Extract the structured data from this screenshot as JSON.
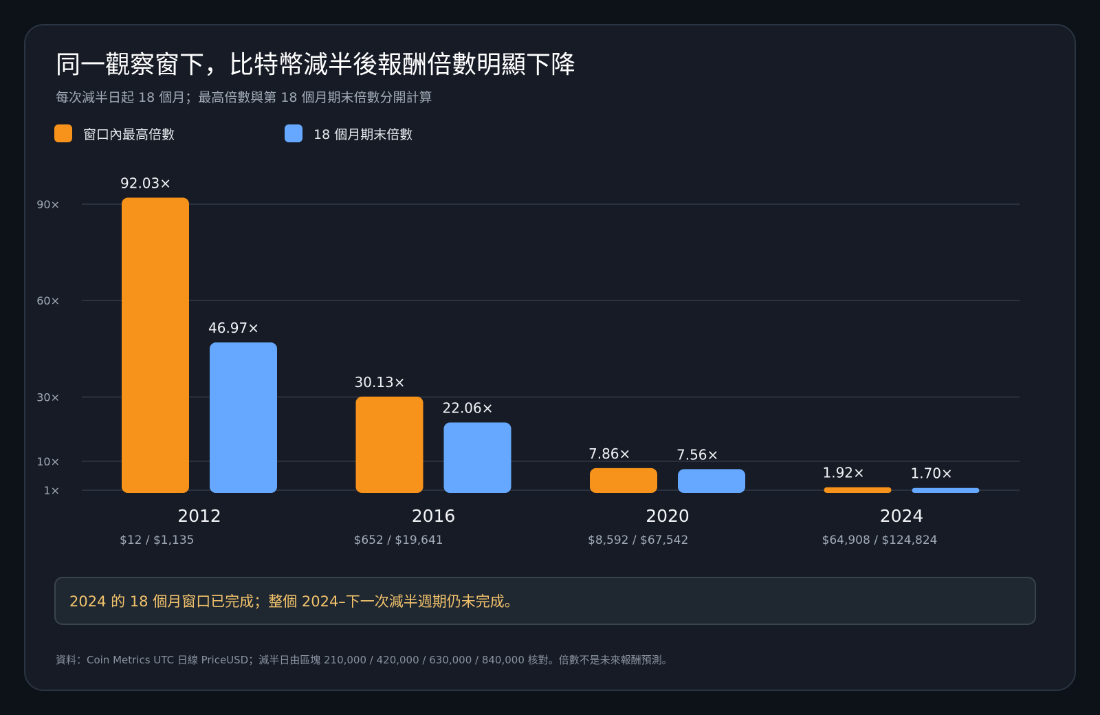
{
  "title": "同一觀察窗下，比特幣減半後報酬倍數明顯下降",
  "subtitle": "每次減半日起 18 個月；最高倍數與第 18 個月期末倍數分開計算",
  "legend": [
    {
      "label": "窗口內最高倍數",
      "color": "#f7931a"
    },
    {
      "label": "18 個月期末倍數",
      "color": "#66a8ff"
    }
  ],
  "chart_data": {
    "type": "bar",
    "categories": [
      "2012",
      "2016",
      "2020",
      "2024"
    ],
    "category_sublabels": [
      "$12  /  $1,135",
      "$652  /  $19,641",
      "$8,592  /  $67,542",
      "$64,908  /  $124,824"
    ],
    "series": [
      {
        "name": "窗口內最高倍數",
        "color": "#f7931a",
        "values": [
          92.03,
          30.13,
          7.86,
          1.92
        ],
        "labels": [
          "92.03×",
          "30.13×",
          "7.86×",
          "1.92×"
        ]
      },
      {
        "name": "18 個月期末倍數",
        "color": "#66a8ff",
        "values": [
          46.97,
          22.06,
          7.56,
          1.7
        ],
        "labels": [
          "46.97×",
          "22.06×",
          "7.56×",
          "1.70×"
        ]
      }
    ],
    "y_ticks": [
      1,
      10,
      30,
      60,
      90
    ],
    "y_tick_labels": [
      "1×",
      "10×",
      "30×",
      "60×",
      "90×"
    ],
    "ylim": [
      1,
      90
    ],
    "grid": true,
    "legend_position": "top-left"
  },
  "note": "2024 的 18 個月窗口已完成；整個 2024–下一次減半週期仍未完成。",
  "source": "資料：Coin Metrics UTC 日線 PriceUSD；減半日由區塊 210,000 / 420,000 / 630,000 / 840,000 核對。倍數不是未來報酬預測。"
}
